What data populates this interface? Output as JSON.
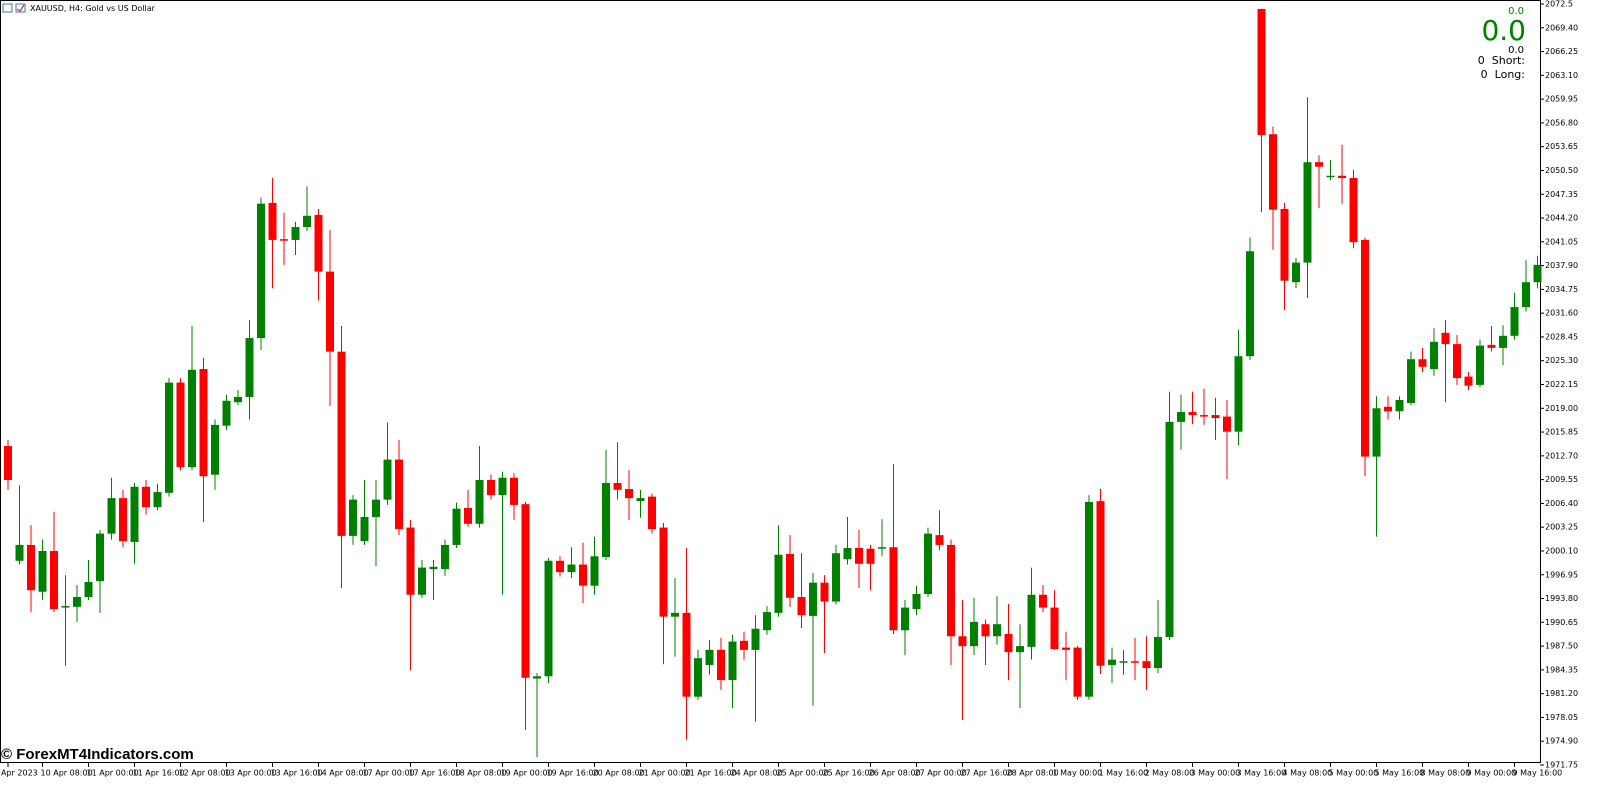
{
  "chart_data": {
    "type": "candlestick",
    "title": "XAUUSD, H4:  Gold vs US Dollar",
    "watermark": "© ForexMT4Indicators.com",
    "panel": {
      "top_value": "0.0",
      "main_value": "0.0",
      "sub_value": "0.0",
      "short": "0  Short:",
      "long": "0  Long:"
    },
    "up_color": "#008000",
    "down_color": "#ff0000",
    "grid": false,
    "ylim": [
      1971.75,
      2073.08
    ],
    "yticks": [
      {
        "value": 2072.55,
        "label": "2072.5"
      },
      {
        "value": 2069.4,
        "label": "2069.40"
      },
      2066.25,
      {
        "value": 2063.1,
        "label": "2063.10"
      },
      2059.95,
      {
        "value": 2056.8,
        "label": "2056.80"
      },
      2053.65,
      {
        "value": 2050.5,
        "label": "2050.50"
      },
      2047.35,
      {
        "value": 2044.2,
        "label": "2044.20"
      },
      2041.05,
      {
        "value": 2037.9,
        "label": "2037.90"
      },
      2034.75,
      {
        "value": 2031.6,
        "label": "2031.60"
      },
      2028.45,
      {
        "value": 2025.3,
        "label": "2025.30"
      },
      2022.15,
      {
        "value": 2019,
        "label": "2019.00"
      },
      2015.85,
      {
        "value": 2012.7,
        "label": "2012.70"
      },
      2009.55,
      {
        "value": 2006.4,
        "label": "2006.40"
      },
      2003.25,
      {
        "value": 2000.1,
        "label": "2000.10"
      },
      1996.95,
      {
        "value": 1993.8,
        "label": "1993.80"
      },
      1990.65,
      {
        "value": 1987.5,
        "label": "1987.50"
      },
      1984.35,
      {
        "value": 1981.2,
        "label": "1981.20"
      },
      1978.05,
      {
        "value": 1974.9,
        "label": "1974.90"
      },
      1971.75
    ],
    "categories": [
      "Apr 2023",
      null,
      null,
      "10 Apr 08:00",
      null,
      null,
      null,
      "11 Apr 00:00",
      null,
      null,
      null,
      "11 Apr 16:00",
      null,
      null,
      null,
      "12 Apr 08:00",
      null,
      null,
      null,
      "13 Apr 00:00",
      null,
      null,
      null,
      "13 Apr 16:00",
      null,
      null,
      null,
      "14 Apr 08:00",
      null,
      null,
      null,
      "17 Apr 00:00",
      null,
      null,
      null,
      "17 Apr 16:00",
      null,
      null,
      null,
      "18 Apr 08:00",
      null,
      null,
      null,
      "19 Apr 00:00",
      null,
      null,
      null,
      "19 Apr 16:00",
      null,
      null,
      null,
      "20 Apr 08:00",
      null,
      null,
      null,
      "21 Apr 00:00",
      null,
      null,
      null,
      "21 Apr 16:00",
      null,
      null,
      null,
      "24 Apr 08:00",
      null,
      null,
      null,
      "25 Apr 00:00",
      null,
      null,
      null,
      "25 Apr 16:00",
      null,
      null,
      null,
      "26 Apr 08:00",
      null,
      null,
      null,
      "27 Apr 00:00",
      null,
      null,
      null,
      "27 Apr 16:00",
      null,
      null,
      null,
      "28 Apr 08:00",
      null,
      null,
      null,
      "1 May 00:00",
      null,
      null,
      null,
      "1 May 16:00",
      null,
      null,
      null,
      "2 May 08:00",
      null,
      null,
      null,
      "3 May 00:00",
      null,
      null,
      null,
      "3 May 16:00",
      null,
      null,
      null,
      "4 May 08:00",
      null,
      null,
      null,
      "5 May 00:00",
      null,
      null,
      null,
      "5 May 16:00",
      null,
      null,
      null,
      "8 May 08:00",
      null,
      null,
      null,
      "9 May 00:00",
      null,
      null,
      null,
      "9 May 16:00",
      null,
      null
    ],
    "ohlc": [
      [
        2014.0,
        2014.8,
        2008.2,
        2009.5
      ],
      [
        1998.8,
        2008.8,
        1998.3,
        2000.9
      ],
      [
        2000.9,
        2003.5,
        1992.0,
        1994.9
      ],
      [
        1994.7,
        2001.6,
        1993.6,
        2000.1
      ],
      [
        2000.1,
        2005.3,
        1992.0,
        1992.4
      ],
      [
        1992.6,
        1996.9,
        1984.9,
        1992.8
      ],
      [
        1992.7,
        1995.6,
        1990.7,
        1994.0
      ],
      [
        1994.0,
        1998.9,
        1993.6,
        1996.0
      ],
      [
        1996.1,
        2002.9,
        1991.9,
        2002.4
      ],
      [
        2002.4,
        2009.8,
        2001.6,
        2007.1
      ],
      [
        2007.1,
        2008.2,
        2000.6,
        2001.4
      ],
      [
        2001.3,
        2009.1,
        1998.4,
        2008.6
      ],
      [
        2008.6,
        2009.5,
        2004.9,
        2005.9
      ],
      [
        2005.9,
        2009.0,
        2005.5,
        2007.9
      ],
      [
        2007.8,
        2023.0,
        2007.3,
        2022.4
      ],
      [
        2022.4,
        2023.0,
        2010.8,
        2011.2
      ],
      [
        2011.2,
        2029.9,
        2010.8,
        2024.1
      ],
      [
        2024.2,
        2025.7,
        2003.9,
        2010.0
      ],
      [
        2010.2,
        2017.5,
        2008.2,
        2016.8
      ],
      [
        2016.7,
        2020.8,
        2016.1,
        2020.0
      ],
      [
        2019.8,
        2021.4,
        2019.4,
        2020.5
      ],
      [
        2020.5,
        2030.7,
        2017.5,
        2028.3
      ],
      [
        2028.3,
        2046.9,
        2026.7,
        2046.1
      ],
      [
        2046.2,
        2049.5,
        2034.9,
        2041.3
      ],
      [
        2041.4,
        2044.9,
        2038.0,
        2041.2
      ],
      [
        2041.3,
        2043.7,
        2039.3,
        2043.0
      ],
      [
        2043.0,
        2048.4,
        2042.5,
        2044.5
      ],
      [
        2044.6,
        2045.4,
        2033.3,
        2037.1
      ],
      [
        2037.1,
        2042.6,
        2019.3,
        2026.5
      ],
      [
        2026.5,
        2029.9,
        1995.2,
        2002.1
      ],
      [
        2002.1,
        2007.5,
        2000.9,
        2006.9
      ],
      [
        2001.4,
        2009.5,
        2000.9,
        2004.6
      ],
      [
        2004.6,
        2009.5,
        1998.1,
        2006.9
      ],
      [
        2006.9,
        2017.1,
        2006.2,
        2012.2
      ],
      [
        2012.2,
        2014.8,
        2002.2,
        2003.0
      ],
      [
        2003.2,
        2004.2,
        1984.3,
        1994.3
      ],
      [
        1994.3,
        1998.9,
        1993.9,
        1997.9
      ],
      [
        1997.7,
        1998.9,
        1993.6,
        1998.0
      ],
      [
        1997.7,
        2001.6,
        1996.8,
        2000.9
      ],
      [
        2000.9,
        2006.5,
        2000.5,
        2005.7
      ],
      [
        2005.8,
        2008.2,
        2003.3,
        2003.7
      ],
      [
        2003.7,
        2014.0,
        2003.2,
        2009.5
      ],
      [
        2009.5,
        2010.2,
        2006.9,
        2007.5
      ],
      [
        2007.5,
        2010.6,
        1994.3,
        2009.8
      ],
      [
        2009.8,
        2010.4,
        2004.2,
        2006.2
      ],
      [
        2006.3,
        2006.6,
        1976.4,
        1983.3
      ],
      [
        1983.2,
        1983.9,
        1972.8,
        1983.5
      ],
      [
        1983.5,
        1999.2,
        1982.6,
        1998.8
      ],
      [
        1998.8,
        1999.4,
        1996.7,
        1997.3
      ],
      [
        1997.3,
        2000.6,
        1996.5,
        1998.3
      ],
      [
        1998.3,
        2001.2,
        1993.2,
        1995.5
      ],
      [
        1995.5,
        2002.0,
        1994.3,
        1999.4
      ],
      [
        1999.3,
        2013.5,
        1998.9,
        2009.1
      ],
      [
        2009.1,
        2014.5,
        2006.9,
        2008.2
      ],
      [
        2008.3,
        2010.8,
        2004.2,
        2007.1
      ],
      [
        2006.7,
        2008.2,
        2004.5,
        2007.1
      ],
      [
        2007.3,
        2007.7,
        2002.4,
        2003.0
      ],
      [
        2003.2,
        2003.8,
        1985.1,
        1991.4
      ],
      [
        1991.4,
        1996.5,
        1986.1,
        1991.9
      ],
      [
        1991.9,
        2000.5,
        1975.1,
        1980.8
      ],
      [
        1980.8,
        1987.0,
        1980.4,
        1985.9
      ],
      [
        1985.0,
        1988.3,
        1983.7,
        1987.0
      ],
      [
        1987.0,
        1988.6,
        1981.7,
        1983.0
      ],
      [
        1983.0,
        1989.0,
        1979.3,
        1988.1
      ],
      [
        1988.2,
        1989.4,
        1985.7,
        1987.0
      ],
      [
        1987.0,
        1991.6,
        1977.5,
        1989.8
      ],
      [
        1989.6,
        1992.8,
        1989.0,
        1992.0
      ],
      [
        1991.9,
        2003.5,
        1991.4,
        1999.6
      ],
      [
        1999.7,
        2002.2,
        1992.7,
        1993.9
      ],
      [
        1994.0,
        1999.8,
        1989.9,
        1991.6
      ],
      [
        1991.5,
        1997.2,
        1979.6,
        1995.9
      ],
      [
        1995.9,
        1996.9,
        1986.6,
        1993.4
      ],
      [
        1993.4,
        2000.9,
        1993.0,
        1999.8
      ],
      [
        1999.0,
        2004.6,
        1998.3,
        2000.5
      ],
      [
        2000.5,
        2002.9,
        1995.2,
        1998.4
      ],
      [
        2000.4,
        2000.9,
        1994.9,
        1998.4
      ],
      [
        2000.4,
        2004.3,
        1999.4,
        2000.6
      ],
      [
        2000.6,
        2011.6,
        1989.1,
        1989.6
      ],
      [
        1989.6,
        1993.6,
        1986.3,
        1992.6
      ],
      [
        1992.4,
        1995.5,
        1991.6,
        1994.4
      ],
      [
        1994.4,
        2003.2,
        1994.0,
        2002.4
      ],
      [
        2002.2,
        2005.5,
        2000.2,
        2000.9
      ],
      [
        2000.9,
        2001.6,
        1985.0,
        1988.8
      ],
      [
        1988.8,
        1993.6,
        1977.7,
        1987.5
      ],
      [
        1987.5,
        1993.9,
        1986.3,
        1990.7
      ],
      [
        1990.4,
        1991.0,
        1985.0,
        1988.8
      ],
      [
        1988.8,
        1994.1,
        1987.7,
        1990.4
      ],
      [
        1989.1,
        1993.1,
        1983.0,
        1986.7
      ],
      [
        1986.7,
        1990.4,
        1979.3,
        1987.5
      ],
      [
        1987.4,
        1997.9,
        1985.7,
        1994.3
      ],
      [
        1994.3,
        1995.6,
        1992.0,
        1992.6
      ],
      [
        1992.6,
        1994.9,
        1987.0,
        1987.1
      ],
      [
        1987.3,
        1989.4,
        1983.0,
        1987.0
      ],
      [
        1987.3,
        1987.5,
        1980.4,
        1980.8
      ],
      [
        1980.8,
        2007.5,
        1980.4,
        2006.6
      ],
      [
        2006.7,
        2008.3,
        1983.8,
        1984.9
      ],
      [
        1985.0,
        1987.3,
        1982.6,
        1985.7
      ],
      [
        1985.4,
        1987.0,
        1983.7,
        1985.5
      ],
      [
        1985.5,
        1988.6,
        1983.0,
        1985.3
      ],
      [
        1985.5,
        1988.8,
        1981.7,
        1984.6
      ],
      [
        1984.6,
        1993.6,
        1983.9,
        1988.7
      ],
      [
        1988.7,
        2021.2,
        1988.3,
        2017.2
      ],
      [
        2017.2,
        2020.8,
        2013.5,
        2018.5
      ],
      [
        2018.5,
        2021.2,
        2016.9,
        2018.1
      ],
      [
        2018.1,
        2021.6,
        2016.8,
        2017.9
      ],
      [
        2018.1,
        2020.4,
        2014.8,
        2017.7
      ],
      [
        2017.9,
        2020.1,
        2009.6,
        2015.9
      ],
      [
        2015.9,
        2029.4,
        2014.1,
        2025.9
      ],
      [
        2025.9,
        2041.6,
        2025.4,
        2039.8
      ],
      [
        2071.9,
        2071.9,
        2045.0,
        2055.2
      ],
      [
        2055.3,
        2056.3,
        2040.0,
        2045.3
      ],
      [
        2045.4,
        2046.2,
        2032.0,
        2035.9
      ],
      [
        2035.7,
        2038.9,
        2034.9,
        2038.3
      ],
      [
        2038.3,
        2060.2,
        2033.6,
        2051.6
      ],
      [
        2051.6,
        2052.5,
        2045.5,
        2051.0
      ],
      [
        2049.6,
        2051.9,
        2049.2,
        2049.8
      ],
      [
        2049.8,
        2053.9,
        2046.1,
        2049.5
      ],
      [
        2049.5,
        2050.6,
        2040.2,
        2041.0
      ],
      [
        2041.3,
        2041.6,
        2010.0,
        2012.6
      ],
      [
        2012.6,
        2020.6,
        2002.0,
        2019.0
      ],
      [
        2019.2,
        2020.6,
        2017.5,
        2018.6
      ],
      [
        2018.6,
        2020.6,
        2017.5,
        2020.1
      ],
      [
        2019.7,
        2026.5,
        2019.4,
        2025.5
      ],
      [
        2025.5,
        2027.0,
        2023.8,
        2024.5
      ],
      [
        2024.2,
        2029.6,
        2023.3,
        2027.8
      ],
      [
        2029.0,
        2030.7,
        2019.8,
        2027.5
      ],
      [
        2027.5,
        2028.7,
        2022.1,
        2023.0
      ],
      [
        2023.2,
        2023.8,
        2021.4,
        2022.0
      ],
      [
        2022.1,
        2028.1,
        2021.8,
        2027.3
      ],
      [
        2027.4,
        2029.9,
        2026.5,
        2027.0
      ],
      [
        2027.0,
        2030.0,
        2024.7,
        2028.6
      ],
      [
        2028.6,
        2034.3,
        2028.1,
        2032.4
      ],
      [
        2032.4,
        2038.6,
        2031.8,
        2035.7
      ],
      [
        2035.7,
        2039.2,
        2034.9,
        2038.0
      ]
    ]
  }
}
